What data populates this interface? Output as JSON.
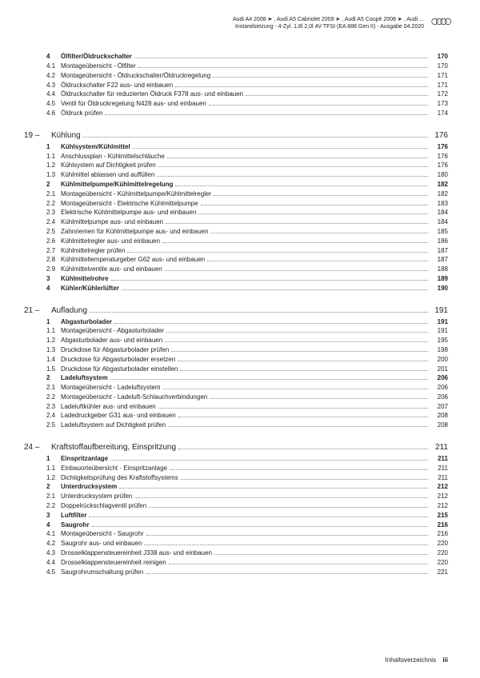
{
  "header": {
    "line1": "Audi A4 2008 ➤ , Audi A5 Cabriolet 2009 ➤ , Audi A5 Coupé 2008 ➤ , Audi ...",
    "line2": "Instandsetzung - 4-Zyl. 1,8l 2,0l 4V TFSI (EA 888 Gen II) - Ausgabe 04.2020"
  },
  "chapters": [
    {
      "prefix": null,
      "entries": [
        {
          "n": "4",
          "t": "Ölfilter/Öldruckschalter",
          "p": "170",
          "b": true
        },
        {
          "n": "4.1",
          "t": "Montageübersicht - Ölfilter",
          "p": "170"
        },
        {
          "n": "4.2",
          "t": "Montageübersicht - Öldruckschalter/Öldruckregelung",
          "p": "171"
        },
        {
          "n": "4.3",
          "t": "Öldruckschalter F22 aus- und einbauen",
          "p": "171"
        },
        {
          "n": "4.4",
          "t": "Öldruckschalter für reduzierten Öldruck F378 aus- und einbauen",
          "p": "172"
        },
        {
          "n": "4.5",
          "t": "Ventil für Öldruckregelung N428 aus- und einbauen",
          "p": "173"
        },
        {
          "n": "4.6",
          "t": "Öldruck prüfen",
          "p": "174"
        }
      ]
    },
    {
      "prefix": {
        "n": "19 –",
        "t": "Kühlung",
        "p": "176"
      },
      "entries": [
        {
          "n": "1",
          "t": "Kühlsystem/Kühlmittel",
          "p": "176",
          "b": true
        },
        {
          "n": "1.1",
          "t": "Anschlussplan - Kühlmittelschläuche",
          "p": "176"
        },
        {
          "n": "1.2",
          "t": "Kühlsystem auf Dichtigkeit prüfen",
          "p": "176"
        },
        {
          "n": "1.3",
          "t": "Kühlmittel ablassen und auffüllen",
          "p": "180"
        },
        {
          "n": "2",
          "t": "Kühlmittelpumpe/Kühlmittelregelung",
          "p": "182",
          "b": true
        },
        {
          "n": "2.1",
          "t": "Montageübersicht - Kühlmittelpumpe/Kühlmittelregler",
          "p": "182"
        },
        {
          "n": "2.2",
          "t": "Montageübersicht - Elektrische Kühlmittelpumpe",
          "p": "183"
        },
        {
          "n": "2.3",
          "t": "Elektrische Kühlmittelpumpe aus- und einbauen",
          "p": "184"
        },
        {
          "n": "2.4",
          "t": "Kühlmittelpumpe aus- und einbauen",
          "p": "184"
        },
        {
          "n": "2.5",
          "t": "Zahnriemen für Kühlmittelpumpe aus- und einbauen",
          "p": "185"
        },
        {
          "n": "2.6",
          "t": "Kühlmittelregler aus- und einbauen",
          "p": "186"
        },
        {
          "n": "2.7",
          "t": "Kühlmittelregler prüfen",
          "p": "187"
        },
        {
          "n": "2.8",
          "t": "Kühlmitteltemperaturgeber G62 aus- und einbauen",
          "p": "187"
        },
        {
          "n": "2.9",
          "t": "Kühlmittelventile aus- und einbauen",
          "p": "188"
        },
        {
          "n": "3",
          "t": "Kühlmittelrohre",
          "p": "189",
          "b": true
        },
        {
          "n": "4",
          "t": "Kühler/Kühlerlüfter",
          "p": "190",
          "b": true
        }
      ]
    },
    {
      "prefix": {
        "n": "21 –",
        "t": "Aufladung",
        "p": "191"
      },
      "entries": [
        {
          "n": "1",
          "t": "Abgasturbolader",
          "p": "191",
          "b": true
        },
        {
          "n": "1.1",
          "t": "Montageübersicht - Abgasturbolader",
          "p": "191"
        },
        {
          "n": "1.2",
          "t": "Abgasturbolader aus- und einbauen",
          "p": "195"
        },
        {
          "n": "1.3",
          "t": "Druckdose für Abgasturbolader prüfen",
          "p": "198"
        },
        {
          "n": "1.4",
          "t": "Druckdose für Abgasturbolader ersetzen",
          "p": "200"
        },
        {
          "n": "1.5",
          "t": "Druckdose für Abgasturbolader einstellen",
          "p": "201"
        },
        {
          "n": "2",
          "t": "Ladeluftsystem",
          "p": "206",
          "b": true
        },
        {
          "n": "2.1",
          "t": "Montageübersicht - Ladeluftsystem",
          "p": "206"
        },
        {
          "n": "2.2",
          "t": "Montageübersicht - Ladeluft-Schlauchverbindungen",
          "p": "206"
        },
        {
          "n": "2.3",
          "t": "Ladeluftkühler aus- und einbauen",
          "p": "207"
        },
        {
          "n": "2.4",
          "t": "Ladedruckgeber G31 aus- und einbauen",
          "p": "208"
        },
        {
          "n": "2.5",
          "t": "Ladeluftsystem auf Dichtigkeit prüfen",
          "p": "208"
        }
      ]
    },
    {
      "prefix": {
        "n": "24 –",
        "t": "Kraftstoffaufbereitung, Einspritzung",
        "p": "211"
      },
      "entries": [
        {
          "n": "1",
          "t": "Einspritzanlage",
          "p": "211",
          "b": true
        },
        {
          "n": "1.1",
          "t": "Einbauorteübersicht - Einspritzanlage",
          "p": "211"
        },
        {
          "n": "1.2",
          "t": "Dichtigkeitsprüfung des Kraftstoffsystems",
          "p": "211"
        },
        {
          "n": "2",
          "t": "Unterdrucksystem",
          "p": "212",
          "b": true
        },
        {
          "n": "2.1",
          "t": "Unterdrucksystem prüfen",
          "p": "212"
        },
        {
          "n": "2.2",
          "t": "Doppelrückschlagventil prüfen",
          "p": "212"
        },
        {
          "n": "3",
          "t": "Luftfilter",
          "p": "215",
          "b": true
        },
        {
          "n": "4",
          "t": "Saugrohr",
          "p": "216",
          "b": true
        },
        {
          "n": "4.1",
          "t": "Montageübersicht - Saugrohr",
          "p": "216"
        },
        {
          "n": "4.2",
          "t": "Saugrohr aus- und einbauen",
          "p": "220"
        },
        {
          "n": "4.3",
          "t": "Drosselklappensteuereinheit J338 aus- und einbauen",
          "p": "220"
        },
        {
          "n": "4.4",
          "t": "Drosselklappensteuereinheit reinigen",
          "p": "220"
        },
        {
          "n": "4.5",
          "t": "Saugrohrumschaltung prüfen",
          "p": "221"
        }
      ]
    }
  ],
  "footer": {
    "label": "Inhaltsverzeichnis",
    "page": "iii"
  }
}
